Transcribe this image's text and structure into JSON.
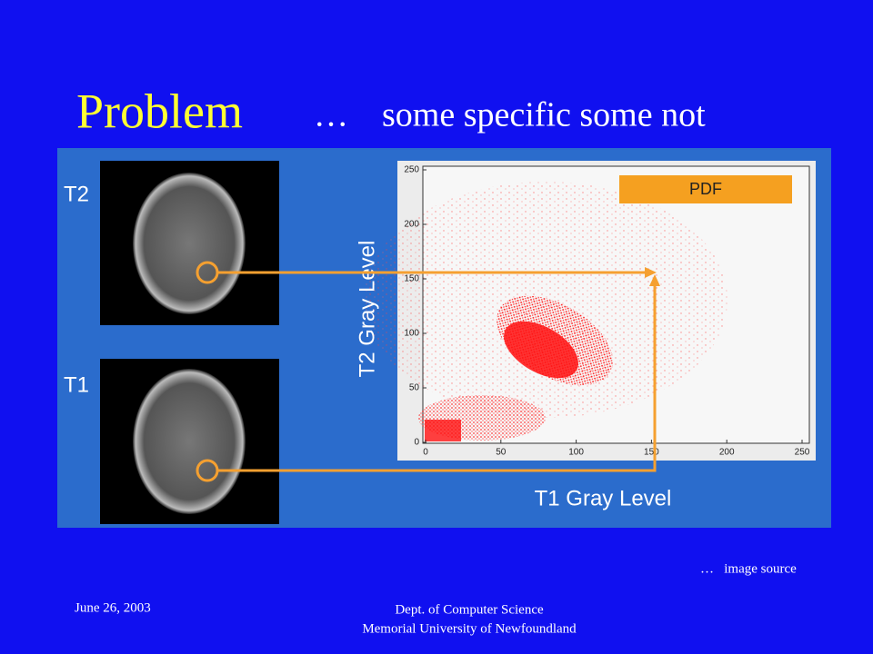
{
  "slide": {
    "title": "Problem",
    "subtitle_lead": "…",
    "subtitle": "some specific some not",
    "figure": {
      "top_image_label": "T2",
      "bottom_image_label": "T1",
      "legend_box": "PDF",
      "x_label": "T1 Gray Level",
      "y_label": "T2 Gray Level",
      "xticks": [
        0,
        50,
        100,
        150,
        200,
        250
      ],
      "yticks": [
        0,
        50,
        100,
        150,
        200,
        250
      ]
    },
    "source_note": "…   image source",
    "footer": {
      "date": "June 26, 2003",
      "department": "Dept. of Computer Science",
      "university": "Memorial University of Newfoundland"
    }
  }
}
